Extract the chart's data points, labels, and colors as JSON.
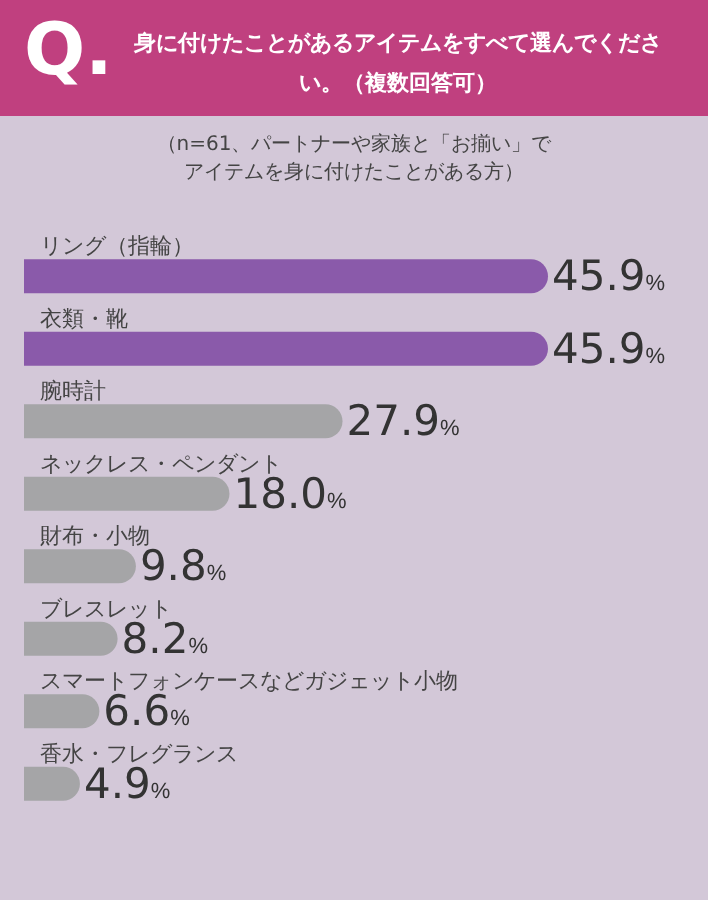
{
  "chart_data": {
    "type": "bar",
    "orientation": "horizontal",
    "title": "身に付けたことがあるアイテムをすべて選んでください。（複数回答可）",
    "subtitle": "（n=61、パートナーや家族と「お揃い」でアイテムを身に付けたことがある方）",
    "annotations": [
      "Q."
    ],
    "categories": [
      "リング（指輪）",
      "衣類・靴",
      "腕時計",
      "ネックレス・ペンダント",
      "財布・小物",
      "ブレスレット",
      "スマートフォンケースなどガジェット小物",
      "香水・フレグランス"
    ],
    "values": [
      45.9,
      45.9,
      27.9,
      18.0,
      9.8,
      8.2,
      6.6,
      4.9
    ],
    "value_labels": [
      "45.9%",
      "45.9%",
      "27.9%",
      "18.0%",
      "9.8%",
      "8.2%",
      "6.6%",
      "4.9%"
    ],
    "colors": [
      "#8a5aaa",
      "#8a5aaa",
      "#a5a5a7",
      "#a5a5a7",
      "#a5a5a7",
      "#a5a5a7",
      "#a5a5a7",
      "#a5a5a7"
    ]
  }
}
